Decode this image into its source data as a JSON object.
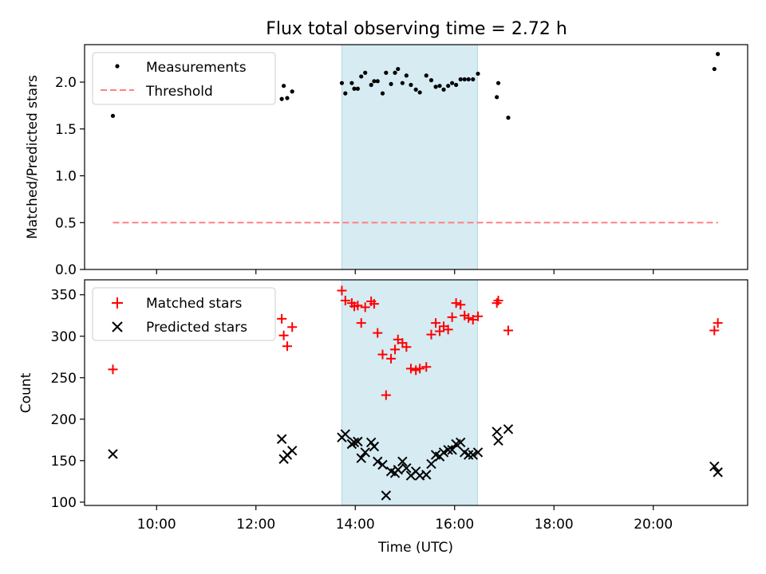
{
  "title": "Flux total observing time = 2.72 h",
  "xlabel": "Time (UTC)",
  "x_tick_labels": [
    "10:00",
    "12:00",
    "14:00",
    "16:00",
    "18:00",
    "20:00"
  ],
  "x_tick_hours": [
    10,
    12,
    14,
    16,
    18,
    20
  ],
  "xlim_hours": [
    8.55,
    21.9
  ],
  "shaded_interval_hours": [
    13.73,
    16.46
  ],
  "colors": {
    "measurement": "#000000",
    "threshold": "#ff8080",
    "matched": "#ff0000",
    "predicted": "#000000",
    "shade": "#add8e6"
  },
  "chart_data": [
    {
      "type": "scatter",
      "ylabel": "Matched/Predicted stars",
      "ylim": [
        0,
        2.4
      ],
      "y_ticks": [
        0.0,
        0.5,
        1.0,
        1.5,
        2.0
      ],
      "y_tick_labels": [
        "0.0",
        "0.5",
        "1.0",
        "1.5",
        "2.0"
      ],
      "legend_position": "upper-left",
      "series": [
        {
          "name": "Measurements",
          "marker": "dot",
          "x": [
            9.12,
            12.52,
            12.56,
            12.63,
            12.73,
            13.73,
            13.8,
            13.93,
            13.98,
            14.05,
            14.12,
            14.2,
            14.32,
            14.38,
            14.45,
            14.55,
            14.62,
            14.72,
            14.8,
            14.86,
            14.95,
            15.03,
            15.12,
            15.22,
            15.3,
            15.43,
            15.53,
            15.62,
            15.7,
            15.78,
            15.87,
            15.95,
            16.03,
            16.12,
            16.2,
            16.28,
            16.37,
            16.47,
            16.85,
            16.88,
            17.08,
            21.23,
            21.3
          ],
          "y": [
            1.64,
            1.82,
            1.96,
            1.83,
            1.9,
            1.99,
            1.88,
            1.99,
            1.93,
            1.93,
            2.06,
            2.1,
            1.97,
            2.01,
            2.01,
            1.88,
            2.1,
            1.98,
            2.1,
            2.14,
            1.99,
            2.07,
            1.97,
            1.92,
            1.89,
            2.07,
            2.02,
            1.95,
            1.96,
            1.92,
            1.96,
            1.99,
            1.97,
            2.03,
            2.03,
            2.03,
            2.03,
            2.09,
            1.84,
            1.99,
            1.62,
            2.14,
            2.3
          ]
        },
        {
          "name": "Threshold",
          "line": "dashed",
          "x": [
            9.12,
            21.3
          ],
          "y": [
            0.5,
            0.5
          ]
        }
      ]
    },
    {
      "type": "scatter",
      "ylabel": "Count",
      "ylim": [
        96,
        368
      ],
      "y_ticks": [
        100,
        150,
        200,
        250,
        300,
        350
      ],
      "y_tick_labels": [
        "100",
        "150",
        "200",
        "250",
        "300",
        "350"
      ],
      "legend_position": "upper-left",
      "series": [
        {
          "name": "Matched stars",
          "marker": "plus",
          "x": [
            9.12,
            12.52,
            12.56,
            12.63,
            12.73,
            13.73,
            13.8,
            13.93,
            13.98,
            14.05,
            14.12,
            14.2,
            14.32,
            14.38,
            14.45,
            14.55,
            14.62,
            14.72,
            14.8,
            14.86,
            14.95,
            15.03,
            15.12,
            15.22,
            15.3,
            15.43,
            15.53,
            15.62,
            15.7,
            15.78,
            15.87,
            15.95,
            16.03,
            16.12,
            16.2,
            16.28,
            16.37,
            16.47,
            16.85,
            16.88,
            17.08,
            21.23,
            21.3
          ],
          "y": [
            260,
            321,
            301,
            288,
            311,
            355,
            343,
            340,
            336,
            337,
            316,
            335,
            342,
            339,
            304,
            278,
            229,
            273,
            284,
            296,
            292,
            287,
            261,
            259,
            261,
            263,
            302,
            316,
            306,
            312,
            308,
            323,
            340,
            338,
            325,
            322,
            320,
            324,
            340,
            343,
            307,
            307,
            316
          ]
        },
        {
          "name": "Predicted stars",
          "marker": "x",
          "x": [
            9.12,
            12.52,
            12.56,
            12.63,
            12.73,
            13.73,
            13.8,
            13.93,
            13.98,
            14.05,
            14.12,
            14.2,
            14.32,
            14.38,
            14.45,
            14.55,
            14.62,
            14.72,
            14.8,
            14.86,
            14.95,
            15.03,
            15.12,
            15.22,
            15.3,
            15.43,
            15.53,
            15.62,
            15.7,
            15.78,
            15.87,
            15.95,
            16.03,
            16.12,
            16.2,
            16.28,
            16.37,
            16.47,
            16.85,
            16.88,
            17.08,
            21.23,
            21.3
          ],
          "y": [
            158,
            176,
            152,
            157,
            162,
            178,
            182,
            170,
            172,
            173,
            153,
            160,
            172,
            167,
            149,
            145,
            108,
            137,
            135,
            139,
            149,
            141,
            132,
            137,
            132,
            133,
            146,
            157,
            155,
            160,
            163,
            163,
            170,
            172,
            160,
            157,
            157,
            160,
            185,
            174,
            188,
            143,
            136
          ]
        }
      ]
    }
  ]
}
